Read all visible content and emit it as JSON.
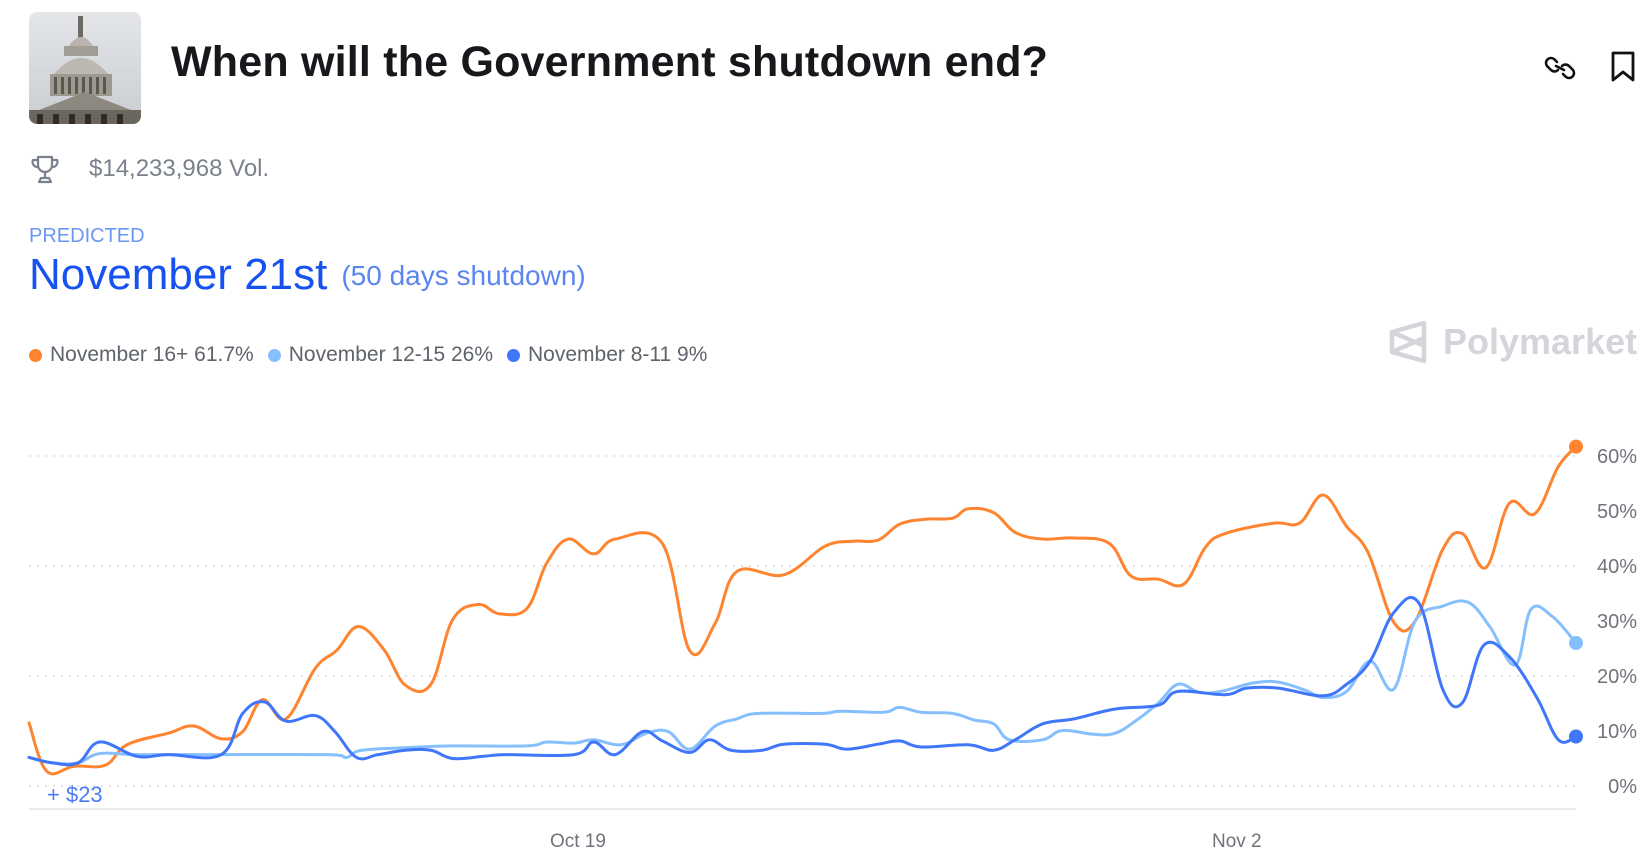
{
  "header": {
    "title": "When will the Government shutdown end?",
    "thumbnail_icon": "us-capitol-image",
    "link_icon": "link-icon",
    "bookmark_icon": "bookmark-icon"
  },
  "volume": {
    "icon": "trophy-icon",
    "text": "$14,233,968 Vol."
  },
  "prediction": {
    "label": "PREDICTED",
    "value": "November 21st",
    "note": "(50 days shutdown)"
  },
  "legend": [
    {
      "label": "November 16+ 61.7%",
      "color": "#ff8430"
    },
    {
      "label": "November 12-15 26%",
      "color": "#86bffd"
    },
    {
      "label": "November 8-11 9%",
      "color": "#3f76fa"
    }
  ],
  "brand": {
    "name": "Polymarket",
    "icon": "polymarket-logo-icon"
  },
  "position_badge": "+ $23",
  "chart_data": {
    "type": "line",
    "xlim": [
      "Oct 7 08:00",
      "Nov 9 05:00"
    ],
    "ylim": [
      0,
      60
    ],
    "y_ticks": [
      "0%",
      "10%",
      "20%",
      "30%",
      "40%",
      "50%",
      "60%"
    ],
    "y_tick_values": [
      0,
      10,
      20,
      30,
      40,
      50,
      60
    ],
    "gridlines": [
      0,
      20,
      40,
      60
    ],
    "x_ticks": [
      {
        "label": "Oct 19",
        "at": "Oct 19 00:00"
      },
      {
        "label": "Nov 2",
        "at": "Nov 2 00:00"
      }
    ],
    "grid": true,
    "series": [
      {
        "name": "November 16+",
        "color": "#ff8430",
        "last": 61.7,
        "points": [
          [
            "Oct 7 08:00",
            11.5
          ],
          [
            "Oct 7 17:00",
            2.7
          ],
          [
            "Oct 8 07:00",
            3.6
          ],
          [
            "Oct 8 23:00",
            3.8
          ],
          [
            "Oct 9 10:00",
            7.5
          ],
          [
            "Oct 10 07:00",
            9.6
          ],
          [
            "Oct 10 20:00",
            10.9
          ],
          [
            "Oct 11 10:00",
            8.6
          ],
          [
            "Oct 11 21:00",
            9.9
          ],
          [
            "Oct 12 07:00",
            15.7
          ],
          [
            "Oct 12 19:00",
            12.2
          ],
          [
            "Oct 13 10:00",
            21.4
          ],
          [
            "Oct 13 21:00",
            24.7
          ],
          [
            "Oct 14 08:00",
            29
          ],
          [
            "Oct 14 21:00",
            24.8
          ],
          [
            "Oct 15 08:00",
            18.3
          ],
          [
            "Oct 15 21:00",
            18.5
          ],
          [
            "Oct 16 08:00",
            30.2
          ],
          [
            "Oct 16 21:00",
            33
          ],
          [
            "Oct 17 08:00",
            31.3
          ],
          [
            "Oct 17 22:00",
            32.3
          ],
          [
            "Oct 18 08:00",
            40.5
          ],
          [
            "Oct 18 19:00",
            44.9
          ],
          [
            "Oct 19 08:00",
            42.2
          ],
          [
            "Oct 19 19:00",
            44.9
          ],
          [
            "Oct 20 19:00",
            44.1
          ],
          [
            "Oct 21 09:00",
            24.6
          ],
          [
            "Oct 21 22:00",
            29.6
          ],
          [
            "Oct 22 09:00",
            39
          ],
          [
            "Oct 23 09:00",
            38.4
          ],
          [
            "Oct 24 06:00",
            43.6
          ],
          [
            "Oct 24 20:00",
            44.5
          ],
          [
            "Oct 25 09:00",
            44.7
          ],
          [
            "Oct 25 20:00",
            47.6
          ],
          [
            "Oct 26 09:00",
            48.5
          ],
          [
            "Oct 26 23:00",
            48.7
          ],
          [
            "Oct 27 07:00",
            50.4
          ],
          [
            "Oct 27 20:00",
            49.7
          ],
          [
            "Oct 28 07:00",
            46.1
          ],
          [
            "Oct 28 21:00",
            44.9
          ],
          [
            "Oct 29 13:00",
            45.1
          ],
          [
            "Oct 30 07:00",
            44.1
          ],
          [
            "Oct 30 18:00",
            38.2
          ],
          [
            "Oct 31 08:00",
            37.6
          ],
          [
            "Oct 31 21:00",
            36.7
          ],
          [
            "Nov 1 08:00",
            43.4
          ],
          [
            "Nov 1 18:00",
            45.9
          ],
          [
            "Nov 2 19:00",
            47.8
          ],
          [
            "Nov 3 08:00",
            47.8
          ],
          [
            "Nov 3 20:00",
            52.9
          ],
          [
            "Nov 4 08:00",
            47.2
          ],
          [
            "Nov 4 19:00",
            42.4
          ],
          [
            "Nov 5 08:00",
            29.8
          ],
          [
            "Nov 5 19:00",
            30
          ],
          [
            "Nov 6 09:00",
            43
          ],
          [
            "Nov 6 19:00",
            45.9
          ],
          [
            "Nov 7 07:00",
            39.7
          ],
          [
            "Nov 7 19:00",
            51.4
          ],
          [
            "Nov 8 08:00",
            49.5
          ],
          [
            "Nov 8 20:00",
            58.1
          ],
          [
            "Nov 9 05:00",
            61.7
          ]
        ]
      },
      {
        "name": "November 12-15",
        "color": "#86bffd",
        "last": 26,
        "points": [
          [
            "Oct 7 08:00",
            5.2
          ],
          [
            "Oct 7 20:00",
            4.2
          ],
          [
            "Oct 8 09:00",
            4.2
          ],
          [
            "Oct 8 20:00",
            5.9
          ],
          [
            "Oct 9 15:00",
            5.7
          ],
          [
            "Oct 11 04:00",
            5.7
          ],
          [
            "Oct 13 16:00",
            5.7
          ],
          [
            "Oct 14 02:00",
            5.2
          ],
          [
            "Oct 14 10:00",
            6.5
          ],
          [
            "Oct 15 16:00",
            7.1
          ],
          [
            "Oct 16 08:00",
            7.3
          ],
          [
            "Oct 17 22:00",
            7.3
          ],
          [
            "Oct 18 08:00",
            8
          ],
          [
            "Oct 18 22:00",
            7.8
          ],
          [
            "Oct 19 08:00",
            8.4
          ],
          [
            "Oct 19 22:00",
            7.5
          ],
          [
            "Oct 20 11:00",
            9.6
          ],
          [
            "Oct 20 22:00",
            9.9
          ],
          [
            "Oct 21 09:00",
            6.7
          ],
          [
            "Oct 21 22:00",
            10.9
          ],
          [
            "Oct 22 09:00",
            12.2
          ],
          [
            "Oct 22 20:00",
            13.2
          ],
          [
            "Oct 24 04:00",
            13.2
          ],
          [
            "Oct 24 14:00",
            13.6
          ],
          [
            "Oct 25 12:00",
            13.4
          ],
          [
            "Oct 25 20:00",
            14.3
          ],
          [
            "Oct 26 07:00",
            13.4
          ],
          [
            "Oct 26 23:00",
            13.2
          ],
          [
            "Oct 27 10:00",
            12
          ],
          [
            "Oct 27 20:00",
            11.3
          ],
          [
            "Oct 28 04:00",
            8.4
          ],
          [
            "Oct 28 21:00",
            8.4
          ],
          [
            "Oct 29 07:00",
            10.1
          ],
          [
            "Oct 29 23:00",
            9.4
          ],
          [
            "Oct 30 10:00",
            9.6
          ],
          [
            "Oct 30 21:00",
            12
          ],
          [
            "Oct 31 08:00",
            15.1
          ],
          [
            "Oct 31 18:00",
            18.5
          ],
          [
            "Nov 1 05:00",
            17
          ],
          [
            "Nov 1 16:00",
            17.2
          ],
          [
            "Nov 2 08:00",
            18.7
          ],
          [
            "Nov 2 21:00",
            18.9
          ],
          [
            "Nov 3 11:00",
            17.4
          ],
          [
            "Nov 3 20:00",
            16.1
          ],
          [
            "Nov 4 08:00",
            17.2
          ],
          [
            "Nov 4 20:00",
            22.7
          ],
          [
            "Nov 5 08:00",
            17.6
          ],
          [
            "Nov 5 19:00",
            30
          ],
          [
            "Nov 6 09:00",
            32.7
          ],
          [
            "Nov 6 22:00",
            33.4
          ],
          [
            "Nov 7 09:00",
            29
          ],
          [
            "Nov 7 22:00",
            22
          ],
          [
            "Nov 8 06:00",
            32.1
          ],
          [
            "Nov 8 17:00",
            30.8
          ],
          [
            "Nov 9 05:00",
            26
          ]
        ]
      },
      {
        "name": "November 8-11",
        "color": "#3f76fa",
        "last": 9,
        "points": [
          [
            "Oct 7 08:00",
            5.2
          ],
          [
            "Oct 7 20:00",
            4.2
          ],
          [
            "Oct 8 09:00",
            4.2
          ],
          [
            "Oct 8 20:00",
            8
          ],
          [
            "Oct 9 15:00",
            5.4
          ],
          [
            "Oct 10 07:00",
            5.7
          ],
          [
            "Oct 11 10:00",
            5.7
          ],
          [
            "Oct 11 21:00",
            13.2
          ],
          [
            "Oct 12 08:00",
            15.3
          ],
          [
            "Oct 12 19:00",
            11.8
          ],
          [
            "Oct 13 10:00",
            12.8
          ],
          [
            "Oct 13 20:00",
            9.9
          ],
          [
            "Oct 14 07:00",
            5.2
          ],
          [
            "Oct 14 18:00",
            5.7
          ],
          [
            "Oct 15 08:00",
            6.5
          ],
          [
            "Oct 15 21:00",
            6.5
          ],
          [
            "Oct 16 08:00",
            5
          ],
          [
            "Oct 17 00:00",
            5.4
          ],
          [
            "Oct 17 11:00",
            5.7
          ],
          [
            "Oct 18 22:00",
            5.7
          ],
          [
            "Oct 19 08:00",
            8
          ],
          [
            "Oct 19 19:00",
            5.7
          ],
          [
            "Oct 20 09:00",
            9.9
          ],
          [
            "Oct 20 19:00",
            8.2
          ],
          [
            "Oct 21 09:00",
            6.1
          ],
          [
            "Oct 21 19:00",
            8.4
          ],
          [
            "Oct 22 06:00",
            6.5
          ],
          [
            "Oct 22 22:00",
            6.5
          ],
          [
            "Oct 23 09:00",
            7.6
          ],
          [
            "Oct 24 06:00",
            7.6
          ],
          [
            "Oct 24 17:00",
            6.7
          ],
          [
            "Oct 25 09:00",
            7.6
          ],
          [
            "Oct 25 20:00",
            8.2
          ],
          [
            "Oct 26 07:00",
            7.1
          ],
          [
            "Oct 27 07:00",
            7.5
          ],
          [
            "Oct 27 20:00",
            6.5
          ],
          [
            "Oct 28 07:00",
            8.4
          ],
          [
            "Oct 28 21:00",
            11.3
          ],
          [
            "Oct 29 13:00",
            12.2
          ],
          [
            "Oct 30 10:00",
            14
          ],
          [
            "Oct 31 08:00",
            14.7
          ],
          [
            "Oct 31 18:00",
            17.2
          ],
          [
            "Nov 1 18:00",
            16.6
          ],
          [
            "Nov 2 05:00",
            17.8
          ],
          [
            "Nov 2 21:00",
            17.8
          ],
          [
            "Nov 3 20:00",
            16.4
          ],
          [
            "Nov 4 08:00",
            18.5
          ],
          [
            "Nov 4 20:00",
            22.7
          ],
          [
            "Nov 5 08:00",
            31.5
          ],
          [
            "Nov 5 21:00",
            33.2
          ],
          [
            "Nov 6 09:00",
            17.6
          ],
          [
            "Nov 6 19:00",
            15.1
          ],
          [
            "Nov 7 06:00",
            25.6
          ],
          [
            "Nov 7 19:00",
            23.5
          ],
          [
            "Nov 8 09:00",
            16.1
          ],
          [
            "Nov 8 20:00",
            8.4
          ],
          [
            "Nov 9 05:00",
            9
          ]
        ]
      }
    ]
  }
}
